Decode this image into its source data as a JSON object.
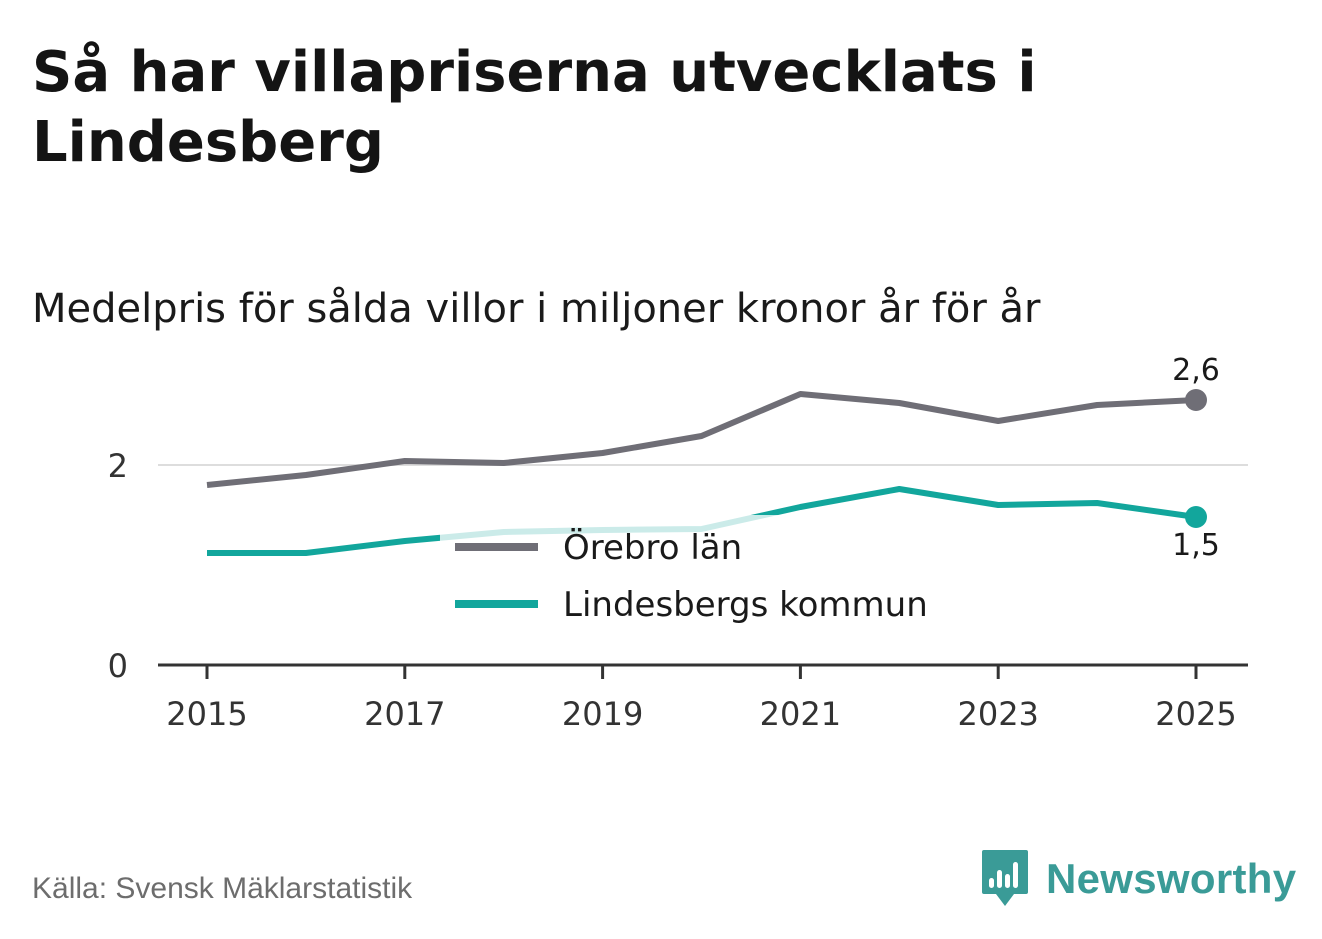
{
  "page": {
    "title": "Så har villapriserna utvecklats i Lindesberg",
    "subtitle": "Medelpris för sålda villor i miljoner kronor år för år",
    "source": "Källa: Svensk Mäklarstatistik",
    "brand": "Newsworthy"
  },
  "colors": {
    "series_orebro": "#6f6e76",
    "series_lindesberg": "#12a69c",
    "gridline": "#dddddd",
    "axis": "#333333",
    "brand": "#3a9b97"
  },
  "chart_data": {
    "type": "line",
    "title": "Så har villapriserna utvecklats i Lindesberg",
    "subtitle": "Medelpris för sålda villor i miljoner kronor år för år",
    "xlabel": "",
    "ylabel": "",
    "x": [
      2015,
      2016,
      2017,
      2018,
      2019,
      2020,
      2021,
      2022,
      2023,
      2024,
      2025
    ],
    "xticks": [
      "2015",
      "2017",
      "2019",
      "2021",
      "2023",
      "2025"
    ],
    "yticks": [
      {
        "value": 0,
        "label": "0"
      },
      {
        "value": 2,
        "label": "2"
      }
    ],
    "xlim": [
      2014.75,
      2025.5
    ],
    "ylim": [
      0,
      2.85
    ],
    "grid": "horizontal",
    "legend_position": "center",
    "series": [
      {
        "name": "Örebro län",
        "color": "#6f6e76",
        "values": [
          1.8,
          1.9,
          2.04,
          2.02,
          2.12,
          2.29,
          2.71,
          2.62,
          2.44,
          2.6,
          2.65
        ],
        "end_label": "2,6"
      },
      {
        "name": "Lindesbergs kommun",
        "color": "#12a69c",
        "values": [
          1.12,
          1.12,
          1.24,
          1.33,
          1.35,
          1.36,
          1.58,
          1.76,
          1.6,
          1.62,
          1.48
        ],
        "end_label": "1,5"
      }
    ]
  }
}
